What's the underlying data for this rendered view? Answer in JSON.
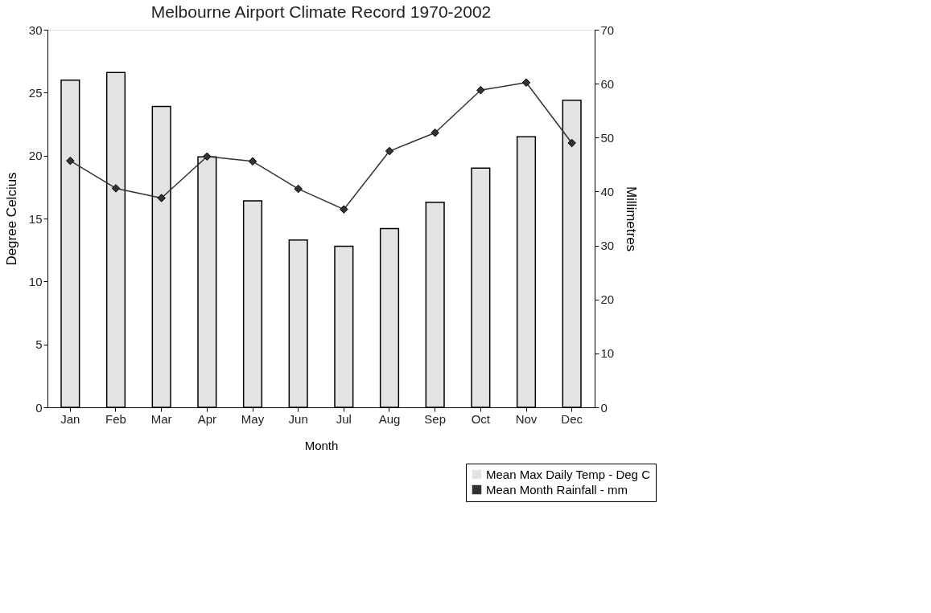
{
  "chart_data": {
    "type": "bar",
    "title": "Melbourne Airport Climate Record 1970-2002",
    "xlabel": "Month",
    "ylabel": "Degree Celcius",
    "y2label": "Millimetres",
    "categories": [
      "Jan",
      "Feb",
      "Mar",
      "Apr",
      "May",
      "Jun",
      "Jul",
      "Aug",
      "Sep",
      "Oct",
      "Nov",
      "Dec"
    ],
    "series": [
      {
        "name": "Mean Max Daily Temp - Deg C",
        "color": "#e3e3e3",
        "values": [
          26.0,
          26.6,
          23.9,
          19.9,
          16.4,
          13.3,
          12.8,
          14.2,
          16.3,
          19.0,
          21.5,
          24.4
        ]
      },
      {
        "name": "Mean Month Rainfall - mm",
        "type": "line",
        "axis": "y2",
        "color": "#333333",
        "values": [
          45.7,
          40.6,
          38.8,
          46.5,
          45.6,
          40.5,
          36.7,
          47.5,
          50.9,
          58.8,
          60.2,
          49.0
        ]
      }
    ],
    "ylim": [
      0,
      30
    ],
    "yticks": [
      0,
      5,
      10,
      15,
      20,
      25,
      30
    ],
    "y2lim": [
      0,
      70
    ],
    "y2ticks": [
      0,
      10,
      20,
      30,
      40,
      50,
      60,
      70
    ],
    "grid": false,
    "legend": "bottom right",
    "marker": "diamond",
    "line_style": "solid"
  }
}
